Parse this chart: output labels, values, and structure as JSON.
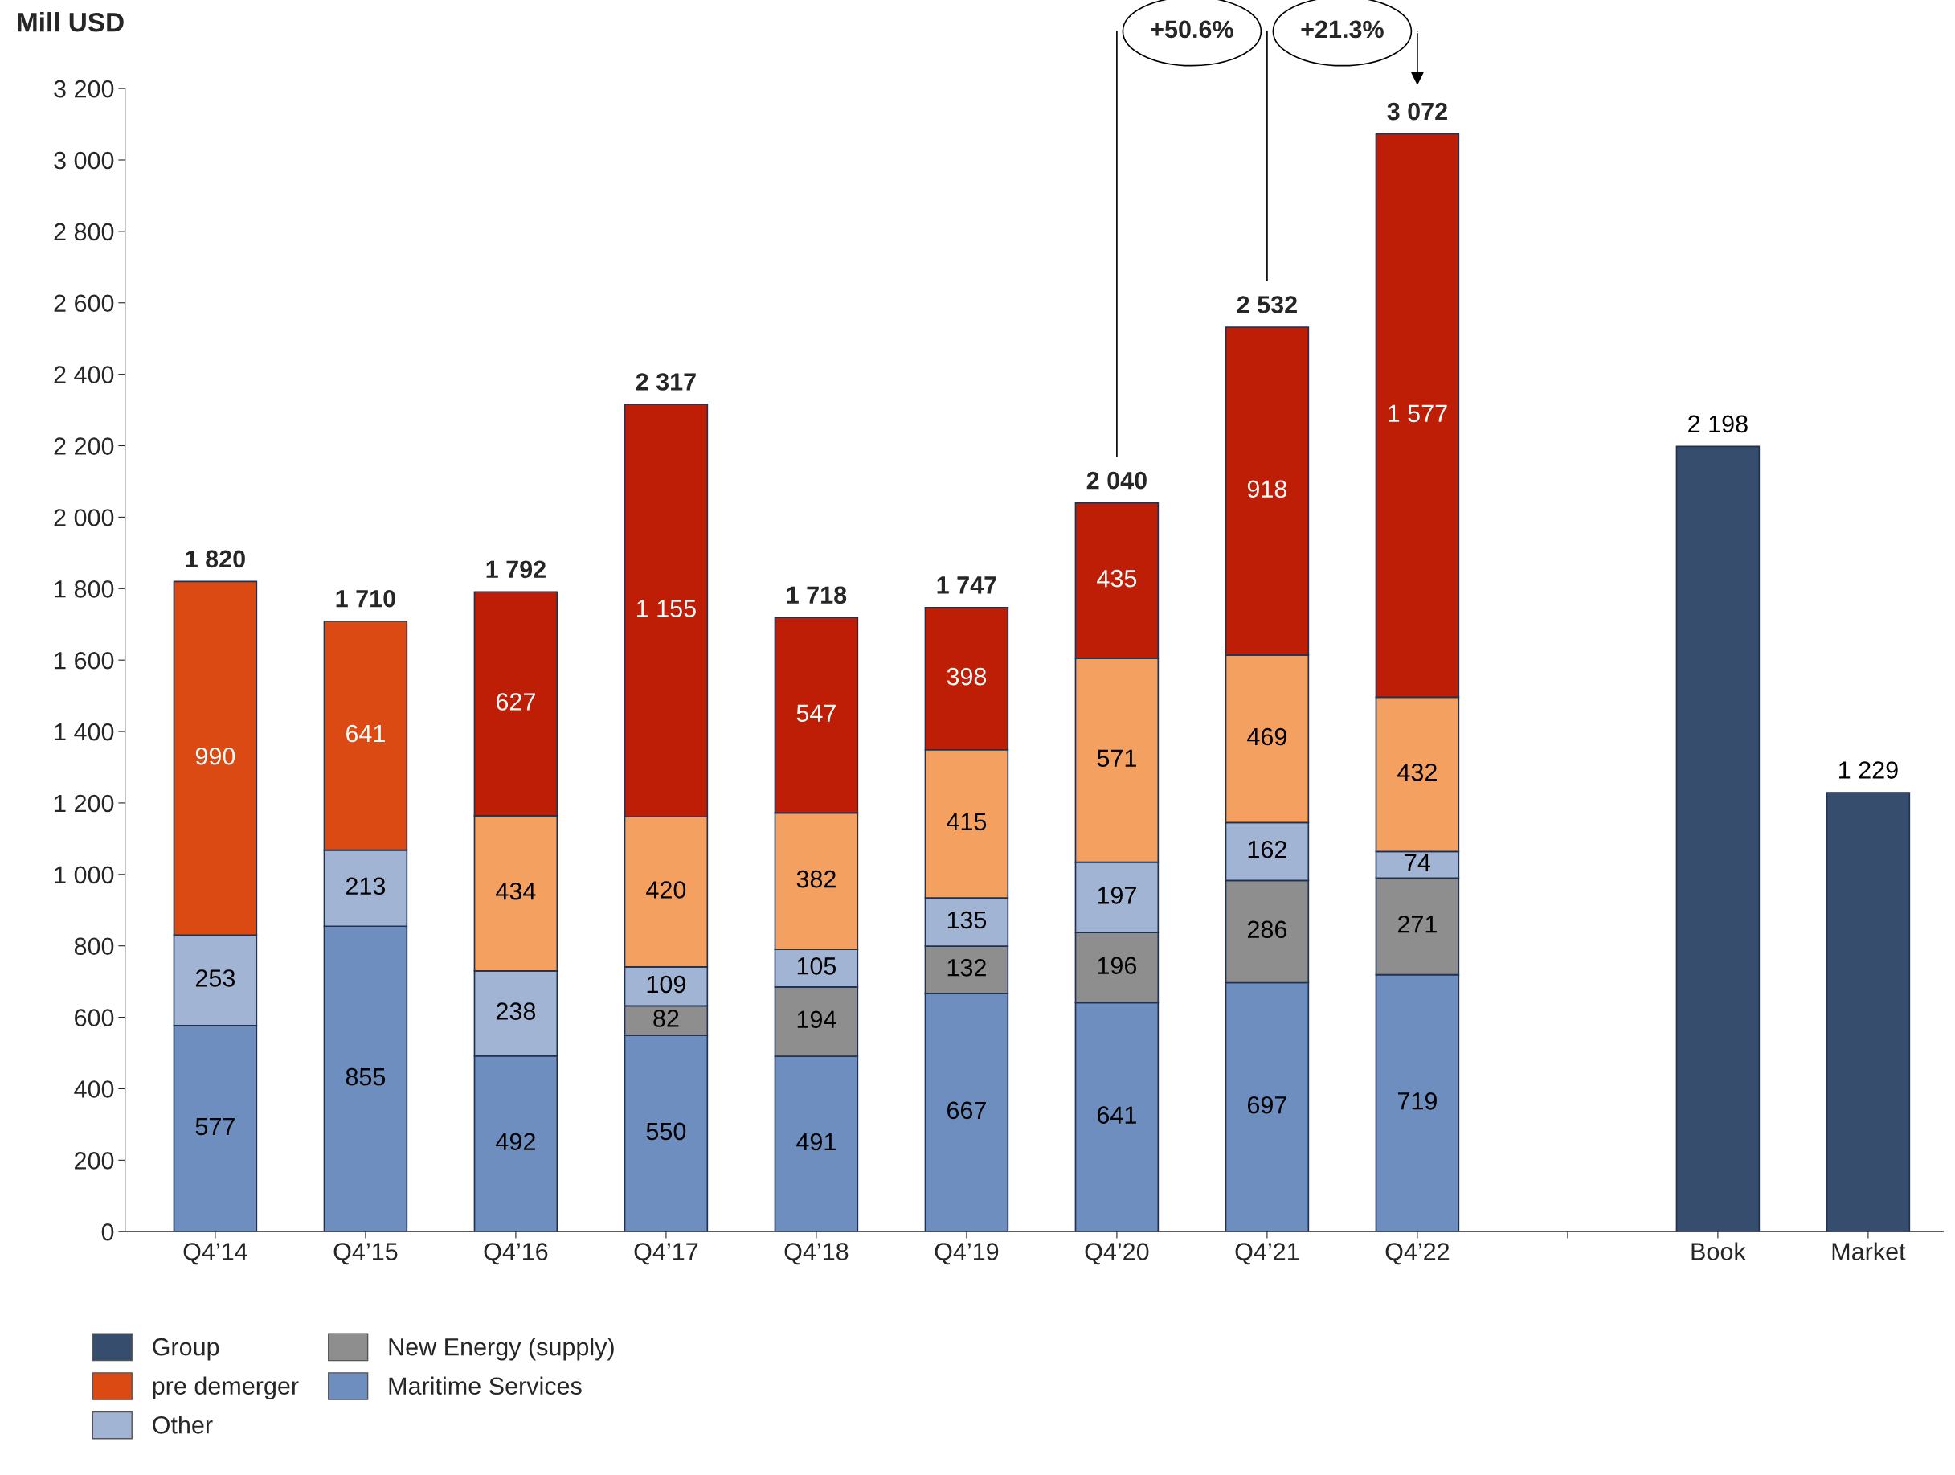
{
  "chart_data": {
    "type": "bar",
    "stacked": true,
    "ylabel": "Mill USD",
    "categories": [
      "Q4’14",
      "Q4’15",
      "Q4’16",
      "Q4’17",
      "Q4’18",
      "Q4’19",
      "Q4’20",
      "Q4’21",
      "Q4’22",
      null,
      "Book",
      "Market"
    ],
    "series": [
      {
        "name": "Maritime Services",
        "color": "#6d8ebf",
        "values": [
          577,
          855,
          492,
          550,
          491,
          667,
          641,
          697,
          719,
          null,
          null,
          null
        ],
        "value_labels": [
          "577",
          "855",
          "492",
          "550",
          "491",
          "667",
          "641",
          "697",
          "719",
          null,
          null,
          null
        ]
      },
      {
        "name": "New Energy (supply)",
        "color": "#8e8e8e",
        "values": [
          null,
          null,
          null,
          82,
          194,
          132,
          196,
          286,
          271,
          null,
          null,
          null
        ],
        "value_labels": [
          null,
          null,
          null,
          "82",
          "194",
          "132",
          "196",
          "286",
          "271",
          null,
          null,
          null
        ]
      },
      {
        "name": "Other",
        "color": "#a2b4d4",
        "values": [
          253,
          213,
          238,
          109,
          105,
          135,
          197,
          162,
          74,
          null,
          null,
          null
        ],
        "value_labels": [
          "253",
          "213",
          "238",
          "109",
          "105",
          "135",
          "197",
          "162",
          "74",
          null,
          null,
          null
        ]
      },
      {
        "color": "#f4a060",
        "values": [
          null,
          null,
          434,
          420,
          382,
          415,
          571,
          469,
          432,
          null,
          null,
          null
        ],
        "value_labels": [
          null,
          null,
          "434",
          "420",
          "382",
          "415",
          "571",
          "469",
          "432",
          null,
          null,
          null
        ]
      },
      {
        "color": "#be1e05",
        "values": [
          null,
          null,
          627,
          1155,
          547,
          398,
          435,
          918,
          1577,
          null,
          null,
          null
        ],
        "value_labels": [
          null,
          null,
          "627",
          "1 155",
          "547",
          "398",
          "435",
          "918",
          "1 577",
          null,
          null,
          null
        ]
      },
      {
        "name": "pre demerger",
        "color": "#da4a12",
        "values": [
          990,
          641,
          null,
          null,
          null,
          null,
          null,
          null,
          null,
          null,
          null,
          null
        ],
        "value_labels": [
          "990",
          "641",
          null,
          null,
          null,
          null,
          null,
          null,
          null,
          null,
          null,
          null
        ]
      },
      {
        "name": "Group",
        "color": "#374d6e",
        "values": [
          null,
          null,
          null,
          null,
          null,
          null,
          null,
          null,
          null,
          null,
          2198,
          1229
        ],
        "value_labels": [
          null,
          null,
          null,
          null,
          null,
          null,
          null,
          null,
          null,
          null,
          "2 198",
          "1 229"
        ]
      }
    ],
    "totals": [
      "1 820",
      "1 710",
      "1 792",
      "2 317",
      "1 718",
      "1 747",
      "2 040",
      "2 532",
      "3 072",
      null,
      null,
      null
    ],
    "ylim": [
      0,
      3200
    ],
    "yticks": [
      0,
      200,
      400,
      600,
      800,
      {
        "value": 1000,
        "label": "1 000"
      },
      {
        "value": 1200,
        "label": "1 200"
      },
      {
        "value": 1400,
        "label": "1 400"
      },
      {
        "value": 1600,
        "label": "1 600"
      },
      {
        "value": 1800,
        "label": "1 800"
      },
      {
        "value": 2000,
        "label": "2 000"
      },
      {
        "value": 2200,
        "label": "2 200"
      },
      {
        "value": 2400,
        "label": "2 400"
      },
      {
        "value": 2600,
        "label": "2 600"
      },
      {
        "value": 2800,
        "label": "2 800"
      },
      {
        "value": 3000,
        "label": "3 000"
      },
      {
        "value": 3200,
        "label": "3 200"
      }
    ],
    "annotations": [
      "+50.6%",
      "+21.3%"
    ],
    "grid": false,
    "legend": "bottom left"
  }
}
